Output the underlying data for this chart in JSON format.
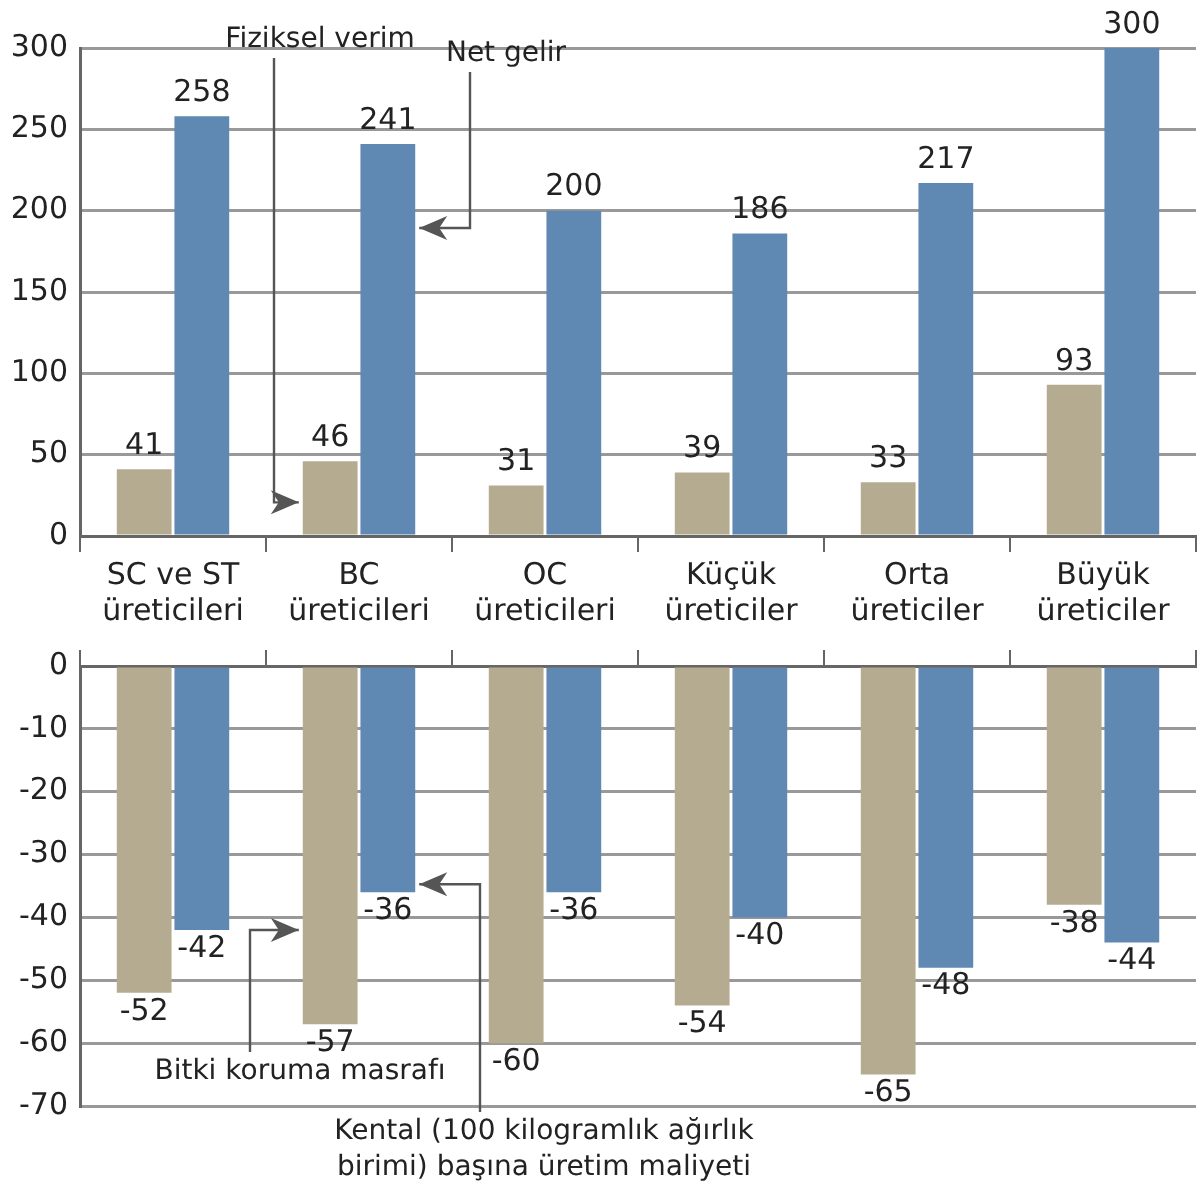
{
  "chart_data": [
    {
      "type": "bar",
      "categories": [
        "SC ve ST üreticileri",
        "BC üreticileri",
        "OC üreticileri",
        "Küçük üreticiler",
        "Orta üreticiler",
        "Büyük üreticiler"
      ],
      "series": [
        {
          "name": "Fiziksel verim",
          "color": "#b5ab91",
          "values": [
            41,
            46,
            31,
            39,
            33,
            93
          ]
        },
        {
          "name": "Net gelir",
          "color": "#5f88b3",
          "values": [
            258,
            241,
            200,
            186,
            217,
            300
          ]
        }
      ],
      "ylim": [
        0,
        300
      ],
      "yticks": [
        0,
        50,
        100,
        150,
        200,
        250,
        300
      ],
      "grid": "y",
      "legend": false,
      "data_labels": true
    },
    {
      "type": "bar",
      "categories": [
        null,
        null,
        null,
        null,
        null,
        null
      ],
      "series": [
        {
          "name": "Bitki koruma masrafı",
          "color": "#b5ab91",
          "values": [
            -52,
            -57,
            -60,
            -54,
            -65,
            -38
          ]
        },
        {
          "name": "Kental (100 kilogramlık ağırlık birimi) başına üretim maliyeti",
          "color": "#5f88b3",
          "values": [
            -42,
            -36,
            -36,
            -40,
            -48,
            -44
          ]
        }
      ],
      "ylim": [
        -70,
        0
      ],
      "yticks": [
        -70,
        -60,
        -50,
        -40,
        -30,
        -20,
        -10,
        0
      ],
      "grid": "y",
      "legend": false,
      "data_labels": true,
      "tick_labels": "y"
    }
  ]
}
